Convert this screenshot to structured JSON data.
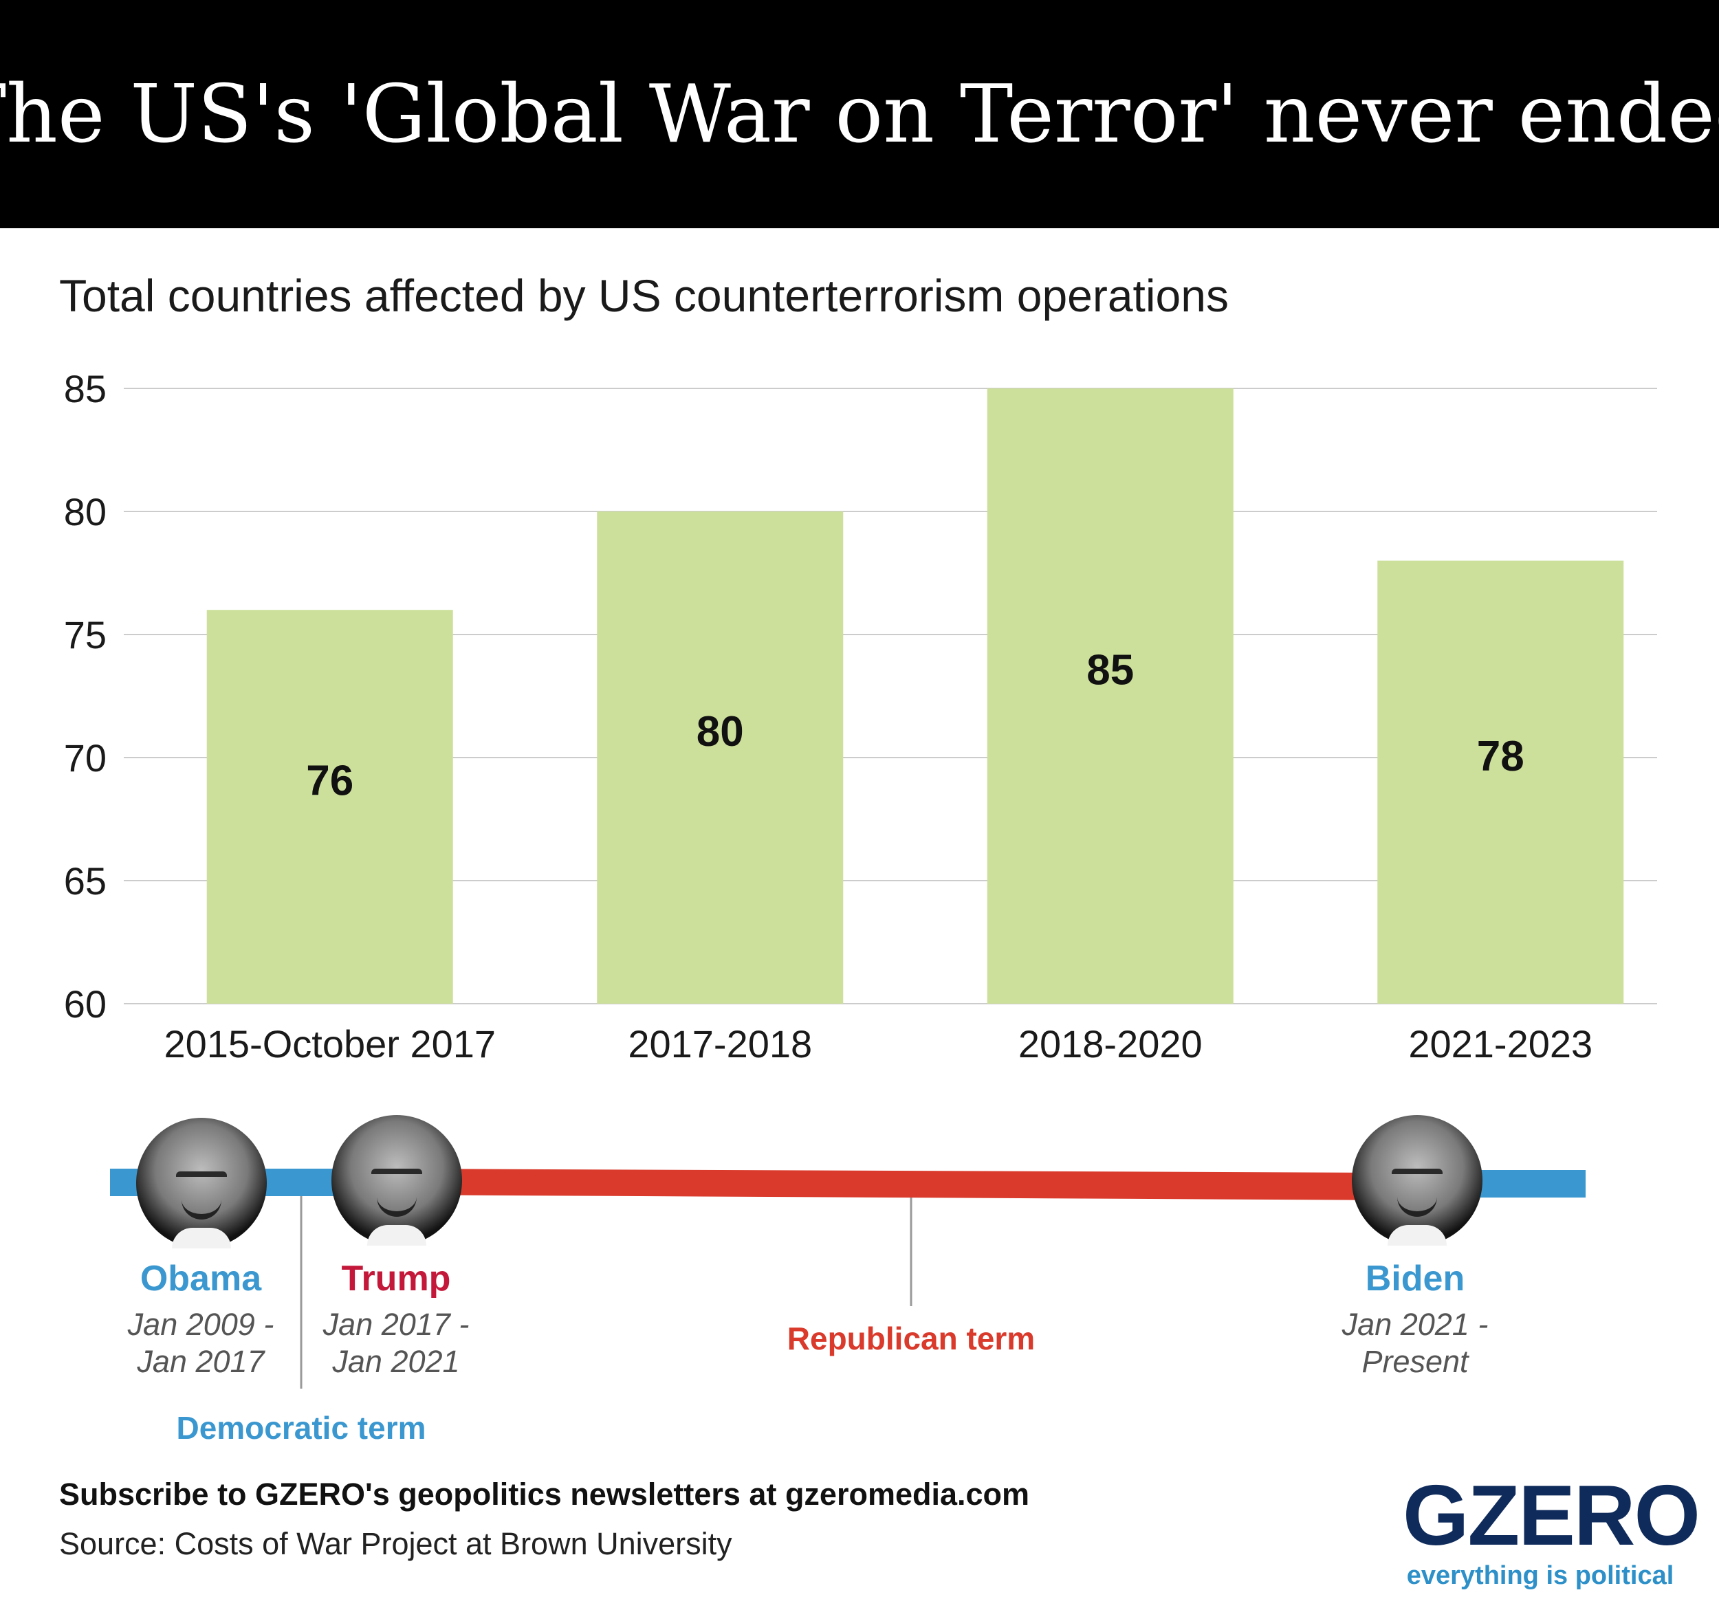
{
  "header": {
    "title": "The US's 'Global War on Terror' never ended"
  },
  "colors": {
    "bar": "#cde09b",
    "democratic": "#3a97cf",
    "republican": "#d93a2b",
    "trump_name": "#c4183a",
    "header_bg": "#000000",
    "gridline": "#cccccc"
  },
  "chart_data": {
    "type": "bar",
    "title": "Total countries affected by US counterterrorism operations",
    "categories": [
      "2015-October 2017",
      "2017-2018",
      "2018-2020",
      "2021-2023"
    ],
    "values": [
      76,
      80,
      85,
      78
    ],
    "value_labels": [
      "76",
      "80",
      "85",
      "78"
    ],
    "ylim": [
      60,
      85
    ],
    "yticks": [
      60,
      65,
      70,
      75,
      80,
      85
    ],
    "ytick_labels": [
      "60",
      "65",
      "70",
      "75",
      "80",
      "85"
    ],
    "grid": true,
    "xlabel": "",
    "ylabel": ""
  },
  "timeline": {
    "presidents": [
      {
        "name": "Obama",
        "dates_line1": "Jan 2009 -",
        "dates_line2": "Jan 2017",
        "party": "democratic",
        "photo_icon": "obama-portrait-icon"
      },
      {
        "name": "Trump",
        "dates_line1": "Jan 2017 -",
        "dates_line2": "Jan 2021",
        "party": "republican",
        "photo_icon": "trump-portrait-icon"
      },
      {
        "name": "Biden",
        "dates_line1": "Jan 2021 -",
        "dates_line2": "Present",
        "party": "democratic",
        "photo_icon": "biden-portrait-icon"
      }
    ],
    "democratic_label": "Democratic term",
    "republican_label": "Republican term"
  },
  "footer": {
    "subscribe": "Subscribe to GZERO's geopolitics newsletters at gzeromedia.com",
    "source": "Source: Costs of War Project at Brown University"
  },
  "logo": {
    "wordmark": "GZERO",
    "tagline": "everything is political"
  }
}
